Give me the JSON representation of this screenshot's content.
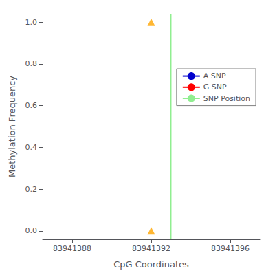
{
  "chart_data": {
    "type": "scatter",
    "xlabel": "CpG Coordinates",
    "ylabel": "Methylation Frequency",
    "xlim": [
      83941386.5,
      83941397.5
    ],
    "ylim": [
      -0.04,
      1.04
    ],
    "xticks": [
      83941388,
      83941392,
      83941396
    ],
    "yticks": [
      {
        "value": 0.0,
        "label": "0.0"
      },
      0.2,
      0.4,
      0.6,
      0.8,
      {
        "value": 1.0,
        "label": "1.0"
      }
    ],
    "grid": false,
    "legend": "upper right",
    "series": [
      {
        "type": "scatter",
        "color": "#FFA500",
        "marker": "triangle",
        "x": [
          83941392,
          83941392
        ],
        "values": [
          1.0,
          0.0
        ]
      },
      {
        "name": "A SNP",
        "type": "line",
        "color": "#0000CD",
        "values": []
      },
      {
        "name": "G SNP",
        "type": "line",
        "color": "#FF0000",
        "values": []
      },
      {
        "name": "SNP Position",
        "type": "vline",
        "color": "#90EE90",
        "x": 83941393
      }
    ]
  }
}
